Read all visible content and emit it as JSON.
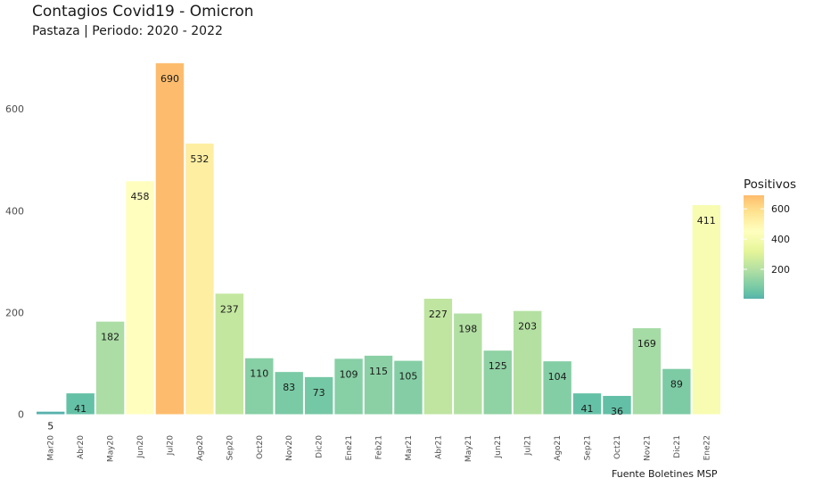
{
  "chart_data": {
    "type": "bar",
    "title": "Contagios Covid19 - Omicron",
    "subtitle": "Pastaza | Periodo: 2020 - 2022",
    "caption": "Fuente Boletines MSP",
    "xlabel": "",
    "ylabel": "",
    "categories": [
      "Mar20",
      "Abr20",
      "May20",
      "Jun20",
      "Jul20",
      "Ago20",
      "Sep20",
      "Oct20",
      "Nov20",
      "Dic20",
      "Ene21",
      "Feb21",
      "Mar21",
      "Abr21",
      "May21",
      "Jun21",
      "Jul21",
      "Ago21",
      "Sep21",
      "Oct21",
      "Nov21",
      "Dic21",
      "Ene22"
    ],
    "values": [
      5,
      41,
      182,
      458,
      690,
      532,
      237,
      110,
      83,
      73,
      109,
      115,
      105,
      227,
      198,
      125,
      203,
      104,
      41,
      36,
      169,
      89,
      411
    ],
    "ylim": [
      0,
      700
    ],
    "yticks": [
      0,
      200,
      400,
      600
    ],
    "grid": false,
    "legend": {
      "title": "Positivos",
      "position": "right",
      "ticks": [
        200,
        400,
        600
      ],
      "range": [
        5,
        690
      ],
      "palette": [
        "#5E4FA2",
        "#3288BD",
        "#66C2A5",
        "#ABDDA4",
        "#E6F598",
        "#FFFFBF",
        "#FEE08B",
        "#FDAE61",
        "#F46D43",
        "#D53E4F",
        "#9E0142"
      ],
      "palette_range": [
        -230,
        1140
      ]
    }
  }
}
